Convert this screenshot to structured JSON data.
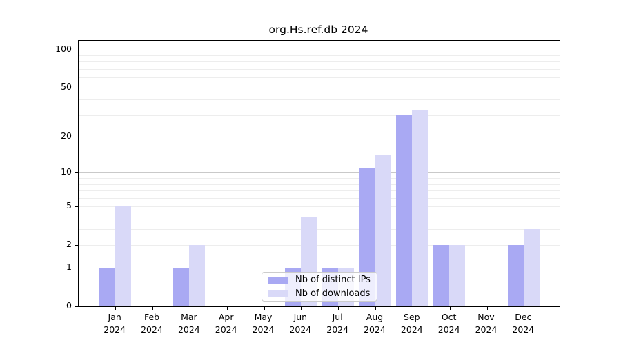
{
  "title": "org.Hs.ref.db 2024",
  "colors": {
    "distinct_ips": "#a9a9f3",
    "downloads": "#d9d9f8",
    "grid_major": "#c9c9c9",
    "grid_minor": "#ededed",
    "axis": "#000000"
  },
  "legend": {
    "items": [
      {
        "label": "Nb of distinct IPs",
        "color": "#a9a9f3"
      },
      {
        "label": "Nb of downloads",
        "color": "#d9d9f8"
      }
    ]
  },
  "chart_data": {
    "type": "bar",
    "title": "org.Hs.ref.db 2024",
    "categories": [
      "Jan 2024",
      "Feb 2024",
      "Mar 2024",
      "Apr 2024",
      "May 2024",
      "Jun 2024",
      "Jul 2024",
      "Aug 2024",
      "Sep 2024",
      "Oct 2024",
      "Nov 2024",
      "Dec 2024"
    ],
    "x_tick_line1": [
      "Jan",
      "Feb",
      "Mar",
      "Apr",
      "May",
      "Jun",
      "Jul",
      "Aug",
      "Sep",
      "Oct",
      "Nov",
      "Dec"
    ],
    "x_tick_line2": [
      "2024",
      "2024",
      "2024",
      "2024",
      "2024",
      "2024",
      "2024",
      "2024",
      "2024",
      "2024",
      "2024",
      "2024"
    ],
    "series": [
      {
        "name": "Nb of distinct IPs",
        "color": "#a9a9f3",
        "values": [
          1,
          0,
          1,
          0,
          0,
          1,
          1,
          11,
          30,
          2,
          0,
          2
        ]
      },
      {
        "name": "Nb of downloads",
        "color": "#d9d9f8",
        "values": [
          5,
          0,
          2,
          0,
          0,
          4,
          1,
          14,
          33,
          2,
          0,
          3
        ]
      }
    ],
    "xlabel": "",
    "ylabel": "",
    "yscale": "log1p",
    "yticks": [
      0,
      1,
      2,
      5,
      10,
      20,
      50,
      100
    ],
    "grid_major_at": [
      1,
      10,
      100
    ],
    "grid_minor_at": [
      2,
      3,
      4,
      5,
      6,
      7,
      8,
      9,
      20,
      30,
      40,
      50,
      60,
      70,
      80,
      90
    ],
    "ylim": [
      0,
      117
    ],
    "grid": true,
    "legend_position": "lower-center-inside"
  }
}
